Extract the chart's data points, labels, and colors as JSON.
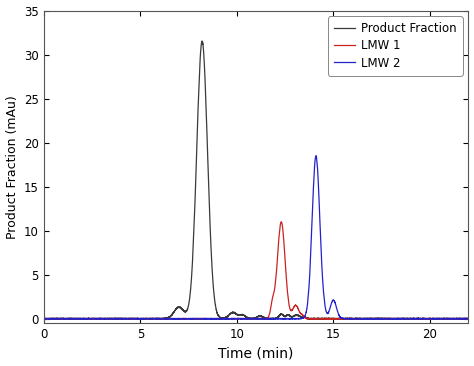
{
  "title": "",
  "xlabel": "Time (min)",
  "ylabel": "Product Fraction (mAu)",
  "xlim": [
    0,
    22
  ],
  "ylim": [
    -0.5,
    35
  ],
  "yticks": [
    0,
    5,
    10,
    15,
    20,
    25,
    30,
    35
  ],
  "xticks": [
    0,
    5,
    10,
    15,
    20
  ],
  "legend": [
    "Product Fraction",
    "LMW 1",
    "LMW 2"
  ],
  "colors": {
    "product": "#3a3a3a",
    "lmw1": "#cc2222",
    "lmw2": "#2222cc"
  },
  "background": "#ffffff",
  "figsize": [
    4.74,
    3.66
  ],
  "dpi": 100,
  "product_peak": {
    "mu": 8.2,
    "sigma": 0.28,
    "amp": 31.5
  },
  "product_features": [
    {
      "mu": 7.0,
      "sigma": 0.25,
      "amp": 1.3
    },
    {
      "mu": 9.8,
      "sigma": 0.2,
      "amp": 0.7
    },
    {
      "mu": 10.3,
      "sigma": 0.15,
      "amp": 0.4
    },
    {
      "mu": 11.2,
      "sigma": 0.15,
      "amp": 0.3
    },
    {
      "mu": 12.3,
      "sigma": 0.12,
      "amp": 0.5
    },
    {
      "mu": 12.65,
      "sigma": 0.1,
      "amp": 0.4
    },
    {
      "mu": 13.1,
      "sigma": 0.18,
      "amp": 0.4
    },
    {
      "mu": 13.5,
      "sigma": 0.09,
      "amp": 0.15
    }
  ],
  "lmw1_peaks": [
    {
      "mu": 12.3,
      "sigma": 0.2,
      "amp": 11.0
    },
    {
      "mu": 11.85,
      "sigma": 0.1,
      "amp": 1.5
    },
    {
      "mu": 13.05,
      "sigma": 0.16,
      "amp": 1.5
    },
    {
      "mu": 13.4,
      "sigma": 0.09,
      "amp": 0.3
    }
  ],
  "lmw2_peaks": [
    {
      "mu": 14.1,
      "sigma": 0.2,
      "amp": 18.5
    },
    {
      "mu": 15.0,
      "sigma": 0.16,
      "amp": 2.1
    },
    {
      "mu": 14.5,
      "sigma": 0.09,
      "amp": 0.3
    }
  ]
}
